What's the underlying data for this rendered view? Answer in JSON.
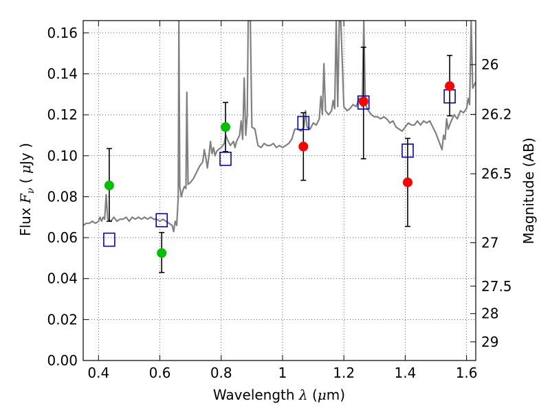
{
  "chart_data": {
    "type": "scatter",
    "xlabel": "Wavelength  λ (μm)",
    "ylabel": "Flux  F_ν  ( μJy )",
    "ylabel_right": "Magnitude (AB)",
    "xlim": [
      0.35,
      1.63
    ],
    "ylim": [
      0.0,
      0.166
    ],
    "x_ticks": [
      0.4,
      0.6,
      0.8,
      1.0,
      1.2,
      1.4,
      1.6
    ],
    "x_tick_labels": [
      "0.4",
      "0.6",
      "0.8",
      "1",
      "1.2",
      "1.4",
      "1.6"
    ],
    "y_ticks": [
      0.0,
      0.02,
      0.04,
      0.06,
      0.08,
      0.1,
      0.12,
      0.14,
      0.16
    ],
    "y_tick_labels": [
      "0.00",
      "0.02",
      "0.04",
      "0.06",
      "0.08",
      "0.10",
      "0.12",
      "0.14",
      "0.16"
    ],
    "right_ticks": [
      {
        "label": "26",
        "flux": 0.1445
      },
      {
        "label": "26.2",
        "flux": 0.1202
      },
      {
        "label": "26.5",
        "flux": 0.0912
      },
      {
        "label": "27",
        "flux": 0.0575
      },
      {
        "label": "27.5",
        "flux": 0.0363
      },
      {
        "label": "28",
        "flux": 0.0229
      },
      {
        "label": "29",
        "flux": 0.0091
      }
    ],
    "grid": true,
    "grid_style": "dotted",
    "colors": {
      "spectrum": "#808080",
      "green_points": "#00c000",
      "red_points": "#ff0000",
      "model_squares": "#0000cc",
      "errorbars": "#000000"
    },
    "series": [
      {
        "kind": "points_with_errors",
        "color": "green",
        "points": [
          {
            "x": 0.435,
            "y": 0.0855,
            "ylow": 0.068,
            "yhigh": 0.1035
          },
          {
            "x": 0.606,
            "y": 0.0525,
            "ylow": 0.043,
            "yhigh": 0.0625
          },
          {
            "x": 0.814,
            "y": 0.114,
            "ylow": 0.102,
            "yhigh": 0.126
          }
        ]
      },
      {
        "kind": "points_with_errors",
        "color": "red",
        "points": [
          {
            "x": 1.068,
            "y": 0.1045,
            "ylow": 0.088,
            "yhigh": 0.121
          },
          {
            "x": 1.264,
            "y": 0.1265,
            "ylow": 0.0985,
            "yhigh": 0.153
          },
          {
            "x": 1.408,
            "y": 0.087,
            "ylow": 0.0655,
            "yhigh": 0.1085
          },
          {
            "x": 1.545,
            "y": 0.134,
            "ylow": 0.1195,
            "yhigh": 0.149
          }
        ]
      },
      {
        "kind": "model_squares",
        "color": "blue",
        "points": [
          {
            "x": 0.435,
            "y": 0.059
          },
          {
            "x": 0.606,
            "y": 0.0685
          },
          {
            "x": 0.814,
            "y": 0.0985
          },
          {
            "x": 1.068,
            "y": 0.116
          },
          {
            "x": 1.264,
            "y": 0.126
          },
          {
            "x": 1.408,
            "y": 0.1025
          },
          {
            "x": 1.545,
            "y": 0.129
          }
        ]
      },
      {
        "kind": "spectrum_line",
        "color": "gray",
        "points": [
          [
            0.35,
            0.066
          ],
          [
            0.36,
            0.067
          ],
          [
            0.37,
            0.067
          ],
          [
            0.38,
            0.068
          ],
          [
            0.39,
            0.067
          ],
          [
            0.4,
            0.068
          ],
          [
            0.405,
            0.07
          ],
          [
            0.41,
            0.068
          ],
          [
            0.415,
            0.07
          ],
          [
            0.42,
            0.069
          ],
          [
            0.425,
            0.081
          ],
          [
            0.43,
            0.069
          ],
          [
            0.44,
            0.068
          ],
          [
            0.45,
            0.07
          ],
          [
            0.46,
            0.068
          ],
          [
            0.47,
            0.069
          ],
          [
            0.48,
            0.069
          ],
          [
            0.49,
            0.07
          ],
          [
            0.5,
            0.068
          ],
          [
            0.51,
            0.07
          ],
          [
            0.52,
            0.069
          ],
          [
            0.53,
            0.07
          ],
          [
            0.54,
            0.069
          ],
          [
            0.55,
            0.07
          ],
          [
            0.56,
            0.069
          ],
          [
            0.57,
            0.07
          ],
          [
            0.58,
            0.069
          ],
          [
            0.59,
            0.069
          ],
          [
            0.6,
            0.068
          ],
          [
            0.61,
            0.069
          ],
          [
            0.62,
            0.068
          ],
          [
            0.63,
            0.067
          ],
          [
            0.64,
            0.066
          ],
          [
            0.645,
            0.063
          ],
          [
            0.65,
            0.068
          ],
          [
            0.655,
            0.066
          ],
          [
            0.66,
            0.08
          ],
          [
            0.662,
            0.166
          ],
          [
            0.665,
            0.085
          ],
          [
            0.67,
            0.08
          ],
          [
            0.675,
            0.083
          ],
          [
            0.68,
            0.085
          ],
          [
            0.685,
            0.084
          ],
          [
            0.688,
            0.131
          ],
          [
            0.692,
            0.086
          ],
          [
            0.7,
            0.087
          ],
          [
            0.71,
            0.089
          ],
          [
            0.72,
            0.092
          ],
          [
            0.73,
            0.095
          ],
          [
            0.74,
            0.097
          ],
          [
            0.745,
            0.103
          ],
          [
            0.75,
            0.099
          ],
          [
            0.755,
            0.094
          ],
          [
            0.76,
            0.1
          ],
          [
            0.765,
            0.107
          ],
          [
            0.77,
            0.101
          ],
          [
            0.775,
            0.104
          ],
          [
            0.78,
            0.1
          ],
          [
            0.785,
            0.102
          ],
          [
            0.79,
            0.103
          ],
          [
            0.8,
            0.104
          ],
          [
            0.81,
            0.106
          ],
          [
            0.815,
            0.11
          ],
          [
            0.82,
            0.108
          ],
          [
            0.83,
            0.105
          ],
          [
            0.84,
            0.107
          ],
          [
            0.845,
            0.104
          ],
          [
            0.85,
            0.107
          ],
          [
            0.86,
            0.11
          ],
          [
            0.865,
            0.117
          ],
          [
            0.87,
            0.108
          ],
          [
            0.875,
            0.138
          ],
          [
            0.88,
            0.11
          ],
          [
            0.885,
            0.12
          ],
          [
            0.888,
            0.166
          ],
          [
            0.895,
            0.166
          ],
          [
            0.9,
            0.114
          ],
          [
            0.91,
            0.113
          ],
          [
            0.92,
            0.105
          ],
          [
            0.93,
            0.104
          ],
          [
            0.94,
            0.106
          ],
          [
            0.95,
            0.105
          ],
          [
            0.96,
            0.105
          ],
          [
            0.97,
            0.106
          ],
          [
            0.98,
            0.104
          ],
          [
            0.99,
            0.105
          ],
          [
            1.0,
            0.104
          ],
          [
            1.01,
            0.105
          ],
          [
            1.02,
            0.106
          ],
          [
            1.03,
            0.108
          ],
          [
            1.04,
            0.113
          ],
          [
            1.05,
            0.113
          ],
          [
            1.06,
            0.112
          ],
          [
            1.07,
            0.114
          ],
          [
            1.075,
            0.122
          ],
          [
            1.08,
            0.114
          ],
          [
            1.09,
            0.113
          ],
          [
            1.1,
            0.116
          ],
          [
            1.11,
            0.115
          ],
          [
            1.12,
            0.118
          ],
          [
            1.125,
            0.129
          ],
          [
            1.13,
            0.12
          ],
          [
            1.135,
            0.145
          ],
          [
            1.14,
            0.122
          ],
          [
            1.15,
            0.12
          ],
          [
            1.16,
            0.122
          ],
          [
            1.165,
            0.127
          ],
          [
            1.17,
            0.123
          ],
          [
            1.175,
            0.166
          ],
          [
            1.18,
            0.124
          ],
          [
            1.185,
            0.166
          ],
          [
            1.19,
            0.166
          ],
          [
            1.2,
            0.124
          ],
          [
            1.21,
            0.122
          ],
          [
            1.22,
            0.123
          ],
          [
            1.23,
            0.125
          ],
          [
            1.24,
            0.124
          ],
          [
            1.25,
            0.128
          ],
          [
            1.26,
            0.124
          ],
          [
            1.265,
            0.166
          ],
          [
            1.27,
            0.125
          ],
          [
            1.28,
            0.122
          ],
          [
            1.29,
            0.12
          ],
          [
            1.3,
            0.119
          ],
          [
            1.31,
            0.119
          ],
          [
            1.32,
            0.118
          ],
          [
            1.33,
            0.119
          ],
          [
            1.34,
            0.118
          ],
          [
            1.35,
            0.116
          ],
          [
            1.36,
            0.117
          ],
          [
            1.37,
            0.114
          ],
          [
            1.38,
            0.113
          ],
          [
            1.39,
            0.112
          ],
          [
            1.4,
            0.114
          ],
          [
            1.41,
            0.116
          ],
          [
            1.42,
            0.115
          ],
          [
            1.43,
            0.115
          ],
          [
            1.44,
            0.117
          ],
          [
            1.45,
            0.115
          ],
          [
            1.46,
            0.117
          ],
          [
            1.47,
            0.116
          ],
          [
            1.48,
            0.117
          ],
          [
            1.49,
            0.114
          ],
          [
            1.5,
            0.111
          ],
          [
            1.51,
            0.107
          ],
          [
            1.52,
            0.103
          ],
          [
            1.525,
            0.11
          ],
          [
            1.53,
            0.108
          ],
          [
            1.535,
            0.118
          ],
          [
            1.54,
            0.113
          ],
          [
            1.55,
            0.117
          ],
          [
            1.56,
            0.12
          ],
          [
            1.57,
            0.118
          ],
          [
            1.58,
            0.122
          ],
          [
            1.59,
            0.121
          ],
          [
            1.6,
            0.123
          ],
          [
            1.605,
            0.128
          ],
          [
            1.61,
            0.125
          ],
          [
            1.615,
            0.166
          ],
          [
            1.62,
            0.133
          ],
          [
            1.63,
            0.136
          ]
        ]
      }
    ]
  }
}
